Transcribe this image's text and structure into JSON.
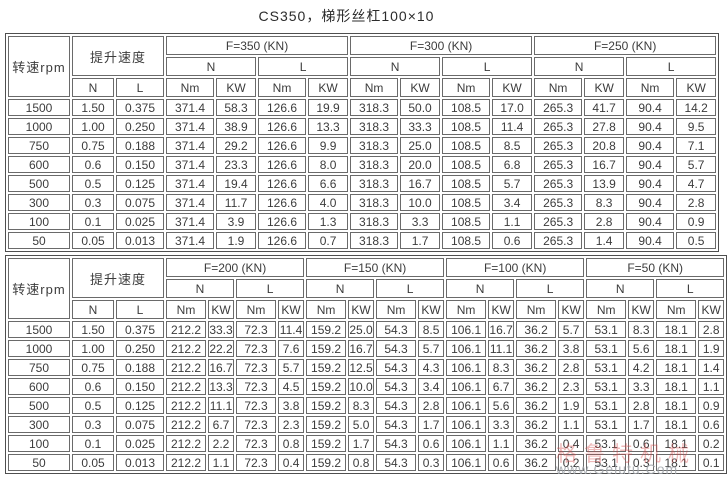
{
  "page": {
    "title": "CS350，梯形丝杠100×10"
  },
  "labels": {
    "speed_col": "转速rpm",
    "lift_col": "提升速度",
    "n": "N",
    "l": "L",
    "nm": "Nm",
    "kw": "KW"
  },
  "watermark": {
    "text_cn": "格鲁特机械",
    "text_url": "www.Gelutu.Com"
  },
  "tables": [
    {
      "groups": [
        "F=350 (KN)",
        "F=300 (KN)",
        "F=250 (KN)"
      ],
      "rows": [
        {
          "rpm": "1500",
          "lift_n": "1.50",
          "lift_l": "0.375",
          "values": [
            "371.4",
            "58.3",
            "126.6",
            "19.9",
            "318.3",
            "50.0",
            "108.5",
            "17.0",
            "265.3",
            "41.7",
            "90.4",
            "14.2"
          ]
        },
        {
          "rpm": "1000",
          "lift_n": "1.00",
          "lift_l": "0.250",
          "values": [
            "371.4",
            "38.9",
            "126.6",
            "13.3",
            "318.3",
            "33.3",
            "108.5",
            "11.4",
            "265.3",
            "27.8",
            "90.4",
            "9.5"
          ]
        },
        {
          "rpm": "750",
          "lift_n": "0.75",
          "lift_l": "0.188",
          "values": [
            "371.4",
            "29.2",
            "126.6",
            "9.9",
            "318.3",
            "25.0",
            "108.5",
            "8.5",
            "265.3",
            "20.8",
            "90.4",
            "7.1"
          ]
        },
        {
          "rpm": "600",
          "lift_n": "0.6",
          "lift_l": "0.150",
          "values": [
            "371.4",
            "23.3",
            "126.6",
            "8.0",
            "318.3",
            "20.0",
            "108.5",
            "6.8",
            "265.3",
            "16.7",
            "90.4",
            "5.7"
          ]
        },
        {
          "rpm": "500",
          "lift_n": "0.5",
          "lift_l": "0.125",
          "values": [
            "371.4",
            "19.4",
            "126.6",
            "6.6",
            "318.3",
            "16.7",
            "108.5",
            "5.7",
            "265.3",
            "13.9",
            "90.4",
            "4.7"
          ]
        },
        {
          "rpm": "300",
          "lift_n": "0.3",
          "lift_l": "0.075",
          "values": [
            "371.4",
            "11.7",
            "126.6",
            "4.0",
            "318.3",
            "10.0",
            "108.5",
            "3.4",
            "265.3",
            "8.3",
            "90.4",
            "2.8"
          ]
        },
        {
          "rpm": "100",
          "lift_n": "0.1",
          "lift_l": "0.025",
          "values": [
            "371.4",
            "3.9",
            "126.6",
            "1.3",
            "318.3",
            "3.3",
            "108.5",
            "1.1",
            "265.3",
            "2.8",
            "90.4",
            "0.9"
          ]
        },
        {
          "rpm": "50",
          "lift_n": "0.05",
          "lift_l": "0.013",
          "values": [
            "371.4",
            "1.9",
            "126.6",
            "0.7",
            "318.3",
            "1.7",
            "108.5",
            "0.6",
            "265.3",
            "1.4",
            "90.4",
            "0.5"
          ]
        }
      ]
    },
    {
      "groups": [
        "F=200 (KN)",
        "F=150 (KN)",
        "F=100 (KN)",
        "F=50 (KN)"
      ],
      "rows": [
        {
          "rpm": "1500",
          "lift_n": "1.50",
          "lift_l": "0.375",
          "values": [
            "212.2",
            "33.3",
            "72.3",
            "11.4",
            "159.2",
            "25.0",
            "54.3",
            "8.5",
            "106.1",
            "16.7",
            "36.2",
            "5.7",
            "53.1",
            "8.3",
            "18.1",
            "2.8"
          ]
        },
        {
          "rpm": "1000",
          "lift_n": "1.00",
          "lift_l": "0.250",
          "values": [
            "212.2",
            "22.2",
            "72.3",
            "7.6",
            "159.2",
            "16.7",
            "54.3",
            "5.7",
            "106.1",
            "11.1",
            "36.2",
            "3.8",
            "53.1",
            "5.6",
            "18.1",
            "1.9"
          ]
        },
        {
          "rpm": "750",
          "lift_n": "0.75",
          "lift_l": "0.188",
          "values": [
            "212.2",
            "16.7",
            "72.3",
            "5.7",
            "159.2",
            "12.5",
            "54.3",
            "4.3",
            "106.1",
            "8.3",
            "36.2",
            "2.8",
            "53.1",
            "4.2",
            "18.1",
            "1.4"
          ]
        },
        {
          "rpm": "600",
          "lift_n": "0.6",
          "lift_l": "0.150",
          "values": [
            "212.2",
            "13.3",
            "72.3",
            "4.5",
            "159.2",
            "10.0",
            "54.3",
            "3.4",
            "106.1",
            "6.7",
            "36.2",
            "2.3",
            "53.1",
            "3.3",
            "18.1",
            "1.1"
          ]
        },
        {
          "rpm": "500",
          "lift_n": "0.5",
          "lift_l": "0.125",
          "values": [
            "212.2",
            "11.1",
            "72.3",
            "3.8",
            "159.2",
            "8.3",
            "54.3",
            "2.8",
            "106.1",
            "5.6",
            "36.2",
            "1.9",
            "53.1",
            "2.8",
            "18.1",
            "0.9"
          ]
        },
        {
          "rpm": "300",
          "lift_n": "0.3",
          "lift_l": "0.075",
          "values": [
            "212.2",
            "6.7",
            "72.3",
            "2.3",
            "159.2",
            "5.0",
            "54.3",
            "1.7",
            "106.1",
            "3.3",
            "36.2",
            "1.1",
            "53.1",
            "1.7",
            "18.1",
            "0.6"
          ]
        },
        {
          "rpm": "100",
          "lift_n": "0.1",
          "lift_l": "0.025",
          "values": [
            "212.2",
            "2.2",
            "72.3",
            "0.8",
            "159.2",
            "1.7",
            "54.3",
            "0.6",
            "106.1",
            "1.1",
            "36.2",
            "0.4",
            "53.1",
            "0.6",
            "18.1",
            "0.2"
          ]
        },
        {
          "rpm": "50",
          "lift_n": "0.05",
          "lift_l": "0.013",
          "values": [
            "212.2",
            "1.1",
            "72.3",
            "0.4",
            "159.2",
            "0.8",
            "54.3",
            "0.3",
            "106.1",
            "0.6",
            "36.2",
            "0.2",
            "53.1",
            "0.3",
            "18.1",
            "0.1"
          ]
        }
      ]
    }
  ]
}
